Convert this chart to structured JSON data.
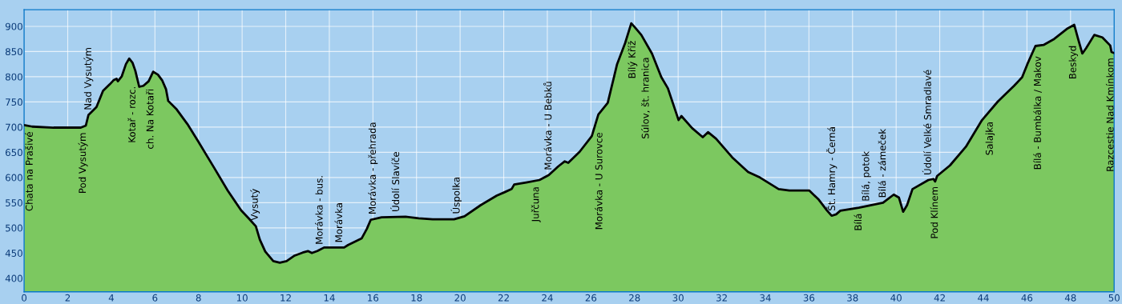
{
  "chart_data": {
    "type": "area",
    "xlim": [
      0,
      50
    ],
    "ylim": [
      373,
      933
    ],
    "xticks": [
      0,
      2,
      4,
      6,
      8,
      10,
      12,
      14,
      16,
      18,
      20,
      22,
      24,
      26,
      28,
      30,
      32,
      34,
      36,
      38,
      40,
      42,
      44,
      46,
      48,
      50
    ],
    "yticks": [
      400,
      450,
      500,
      550,
      600,
      650,
      700,
      750,
      800,
      850,
      900
    ],
    "grid": true,
    "marker": "none",
    "line_style": "solid",
    "series": [
      {
        "color": "#7cc860",
        "x": [
          0,
          0.37,
          1.35,
          2.6,
          2.83,
          2.95,
          3.32,
          3.62,
          3.93,
          4.1,
          4.24,
          4.3,
          4.48,
          4.67,
          4.82,
          4.97,
          5.1,
          5.28,
          5.47,
          5.71,
          5.92,
          6.14,
          6.33,
          6.51,
          6.61,
          7.0,
          7.49,
          7.98,
          8.72,
          9.34,
          9.95,
          10.32,
          10.63,
          10.81,
          11.06,
          11.43,
          11.73,
          12.04,
          12.41,
          12.78,
          13.02,
          13.2,
          13.45,
          13.76,
          14.13,
          14.68,
          14.86,
          15.48,
          15.72,
          15.9,
          16.4,
          17.5,
          18.1,
          18.74,
          19.72,
          20.2,
          20.94,
          21.68,
          22.05,
          22.36,
          22.48,
          23.03,
          23.64,
          24.07,
          24.5,
          24.8,
          24.96,
          25.48,
          26.04,
          26.34,
          26.77,
          27.2,
          27.57,
          27.85,
          28.0,
          28.31,
          28.8,
          29.23,
          29.53,
          30.02,
          30.15,
          30.64,
          31.13,
          31.37,
          31.74,
          32.48,
          33.21,
          33.75,
          34.61,
          35.1,
          36.02,
          36.45,
          36.82,
          37.04,
          37.25,
          37.44,
          38.29,
          39.4,
          39.89,
          40.13,
          40.32,
          40.5,
          40.75,
          41.48,
          41.71,
          41.79,
          41.88,
          42.47,
          43.2,
          43.94,
          44.67,
          45.41,
          45.78,
          46.02,
          46.39,
          46.76,
          47.25,
          47.87,
          48.17,
          48.36,
          48.54,
          48.72,
          49.09,
          49.46,
          49.82,
          49.88,
          50.0
        ],
        "values": [
          704,
          701,
          699,
          699,
          703,
          724,
          740,
          772,
          785,
          793,
          796,
          791,
          801,
          825,
          836,
          828,
          812,
          780,
          782,
          791,
          810,
          804,
          793,
          775,
          752,
          735,
          706,
          672,
          619,
          574,
          535,
          518,
          503,
          477,
          453,
          434,
          431,
          434,
          445,
          451,
          454,
          450,
          454,
          461,
          461,
          461,
          466,
          479,
          498,
          516,
          521,
          522,
          519,
          517,
          517,
          523,
          545,
          564,
          571,
          577,
          586,
          590,
          595,
          605,
          622,
          632,
          629,
          651,
          682,
          725,
          748,
          825,
          867,
          906,
          899,
          883,
          846,
          799,
          777,
          714,
          722,
          698,
          680,
          690,
          677,
          640,
          611,
          600,
          577,
          574,
          574,
          556,
          535,
          524,
          527,
          534,
          540,
          550,
          566,
          560,
          532,
          545,
          577,
          595,
          597,
          592,
          603,
          624,
          661,
          714,
          751,
          782,
          799,
          825,
          861,
          863,
          875,
          896,
          903,
          873,
          846,
          857,
          883,
          878,
          862,
          849,
          847
        ]
      }
    ],
    "annotations": [
      {
        "text": "Chata na Prašivé",
        "x": 0.27,
        "y": 702
      },
      {
        "text": "Pod Vysutým",
        "x": 2.7,
        "y": 699
      },
      {
        "text": "Nad Vysutým",
        "x": 2.95,
        "y": 724
      },
      {
        "text": "Kotař - rozc.",
        "x": 4.98,
        "y": 828
      },
      {
        "text": "ch. Na Kotaři",
        "x": 5.81,
        "y": 800
      },
      {
        "text": "Vysutý",
        "x": 10.59,
        "y": 505
      },
      {
        "text": "Morávka - bus.",
        "x": 13.57,
        "y": 457
      },
      {
        "text": "Morávka",
        "x": 14.47,
        "y": 461
      },
      {
        "text": "Morávka - přehrada",
        "x": 16.0,
        "y": 517
      },
      {
        "text": "Údolí Slavíče",
        "x": 17.08,
        "y": 522
      },
      {
        "text": "Úspolka",
        "x": 19.82,
        "y": 518
      },
      {
        "text": "Juřčuna",
        "x": 23.48,
        "y": 594
      },
      {
        "text": "Morávka - U Bebků",
        "x": 24.07,
        "y": 605
      },
      {
        "text": "Morávka - U Surovce",
        "x": 26.4,
        "y": 728
      },
      {
        "text": "Bílý Kříž",
        "x": 27.91,
        "y": 903
      },
      {
        "text": "Súlov, št. hranica",
        "x": 28.53,
        "y": 867
      },
      {
        "text": "Št. Hamry - Černá",
        "x": 37.04,
        "y": 524
      },
      {
        "text": "Bílá",
        "x": 38.29,
        "y": 540
      },
      {
        "text": "Bílá, potok",
        "x": 38.63,
        "y": 543
      },
      {
        "text": "Bílá - zámeček",
        "x": 39.4,
        "y": 550
      },
      {
        "text": "Údolí Velké Smradlavé",
        "x": 41.48,
        "y": 595
      },
      {
        "text": "Pod Klínem",
        "x": 41.79,
        "y": 592
      },
      {
        "text": "Salajka",
        "x": 44.31,
        "y": 733
      },
      {
        "text": "Bílá - Bumbálka / Makov",
        "x": 46.52,
        "y": 862
      },
      {
        "text": "Beskyd",
        "x": 48.13,
        "y": 899
      },
      {
        "text": "Razcestie Nad Kmínkom",
        "x": 49.85,
        "y": 855
      }
    ]
  }
}
